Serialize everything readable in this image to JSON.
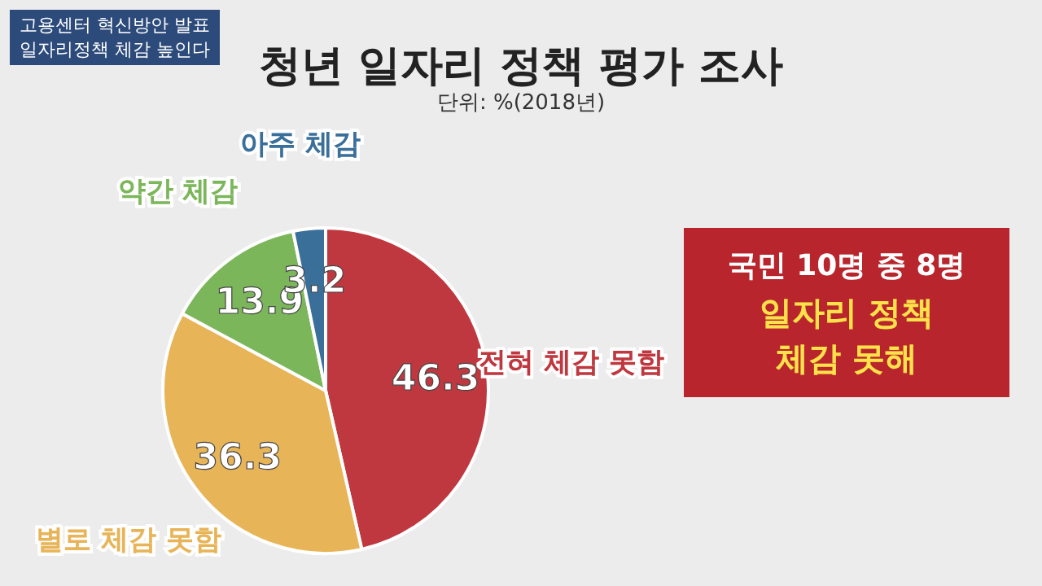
{
  "chart_data": {
    "type": "pie",
    "title": "청년 일자리 정책 평가 조사",
    "subtitle": "단위: %(2018년)",
    "categories": [
      "전혀 체감 못함",
      "별로 체감 못함",
      "약간 체감",
      "아주 체감"
    ],
    "values": [
      46.3,
      36.3,
      13.9,
      3.2
    ],
    "colors": [
      "#c0383f",
      "#e8b458",
      "#7cb65a",
      "#3a6f9a"
    ],
    "data_labels": true,
    "annotations": [
      "고용센터 혁신방안 발표",
      "일자리정책 체감 높인다",
      "국민 10명 중 8명",
      "일자리 정책",
      "체감 못해"
    ]
  }
}
